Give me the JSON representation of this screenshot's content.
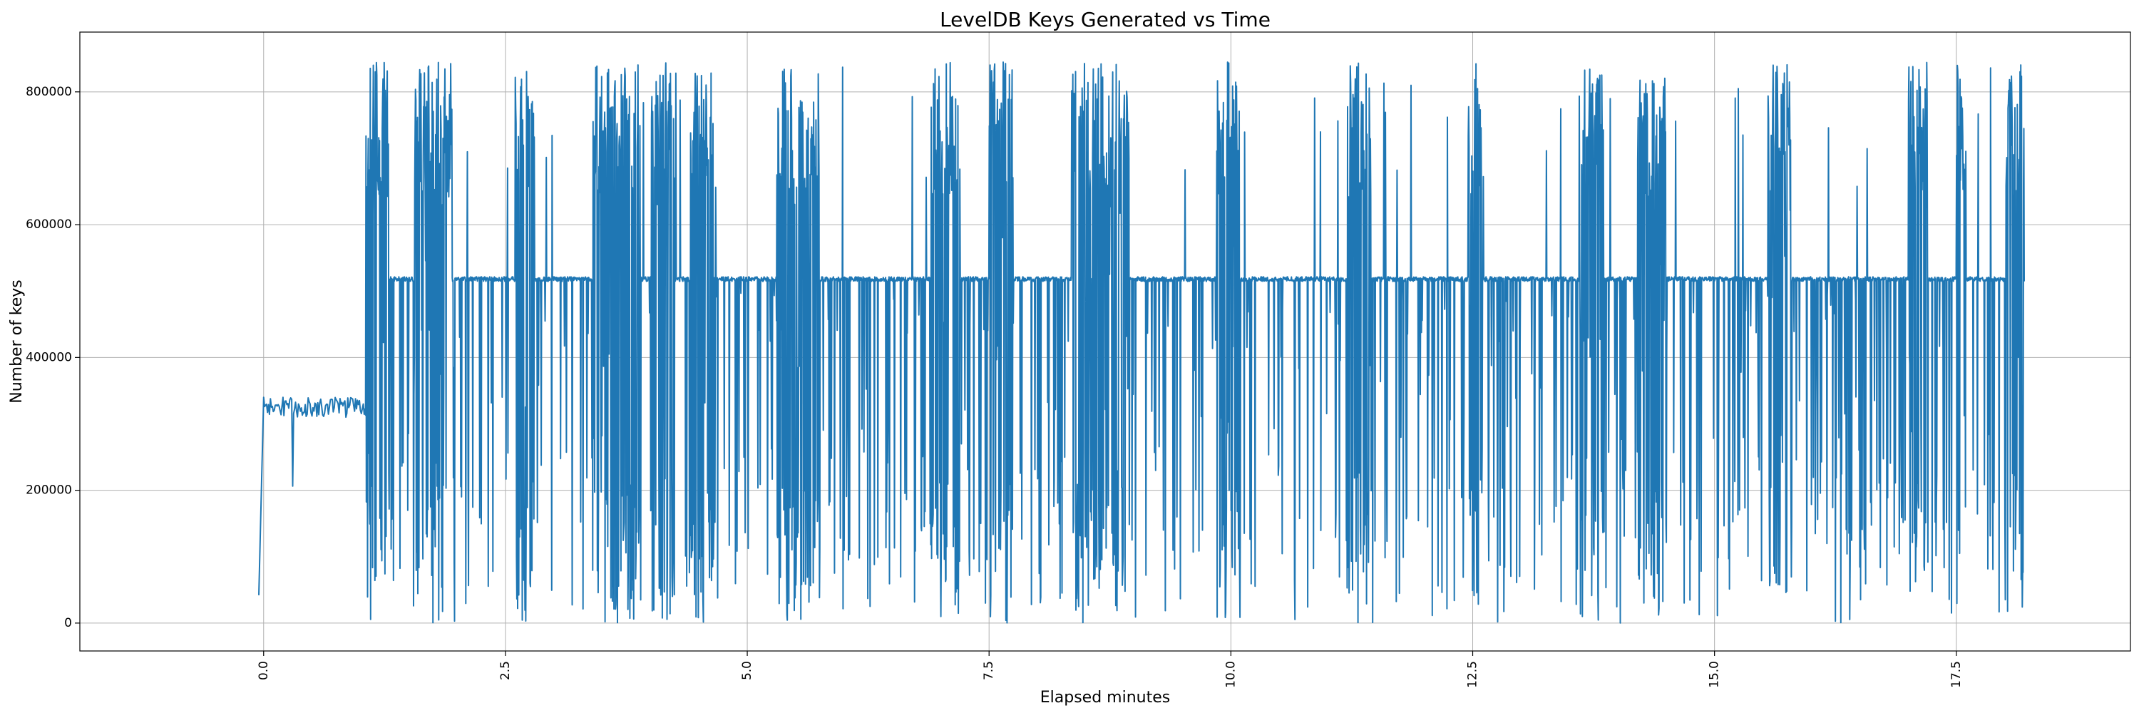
{
  "chart_data": {
    "type": "line",
    "title": "LevelDB Keys Generated vs Time",
    "xlabel": "Elapsed minutes",
    "ylabel": "Number of keys",
    "xlim": [
      -1.9,
      19.3
    ],
    "ylim": [
      -42000,
      890000
    ],
    "grid": true,
    "x_ticks": [
      0.0,
      2.5,
      5.0,
      7.5,
      10.0,
      12.5,
      15.0,
      17.5
    ],
    "x_tick_labels": [
      "0.0",
      "2.5",
      "5.0",
      "7.5",
      "10.0",
      "12.5",
      "15.0",
      "17.5"
    ],
    "y_ticks": [
      0,
      200000,
      400000,
      600000,
      800000
    ],
    "y_tick_labels": [
      "0",
      "200000",
      "400000",
      "600000",
      "800000"
    ],
    "color": "#1f77b4",
    "series": [
      {
        "name": "keys",
        "generation": "approximate reconstruction of a dense, noisy trace",
        "x_start": -0.05,
        "x_end": 18.2,
        "sample_step": 0.004,
        "warmup": {
          "start_value": 42000,
          "ramp_to": 0.0,
          "level": 330000,
          "until": 1.05
        },
        "baseline": 518000,
        "spike_low_min": 0,
        "spike_high_max": 848000,
        "bursts": [
          {
            "start": 1.05,
            "end": 1.3
          },
          {
            "start": 1.55,
            "end": 1.95
          },
          {
            "start": 2.6,
            "end": 2.8
          },
          {
            "start": 3.4,
            "end": 3.9
          },
          {
            "start": 4.0,
            "end": 4.25
          },
          {
            "start": 4.4,
            "end": 4.65
          },
          {
            "start": 5.3,
            "end": 5.55
          },
          {
            "start": 5.55,
            "end": 5.75
          },
          {
            "start": 6.9,
            "end": 7.2
          },
          {
            "start": 7.5,
            "end": 7.75
          },
          {
            "start": 8.35,
            "end": 8.95
          },
          {
            "start": 9.85,
            "end": 10.1
          },
          {
            "start": 11.2,
            "end": 11.45
          },
          {
            "start": 12.45,
            "end": 12.6
          },
          {
            "start": 13.6,
            "end": 13.85
          },
          {
            "start": 14.2,
            "end": 14.5
          },
          {
            "start": 15.55,
            "end": 15.8
          },
          {
            "start": 17.0,
            "end": 17.2
          },
          {
            "start": 17.5,
            "end": 17.6
          },
          {
            "start": 18.0,
            "end": 18.2
          }
        ]
      }
    ]
  }
}
